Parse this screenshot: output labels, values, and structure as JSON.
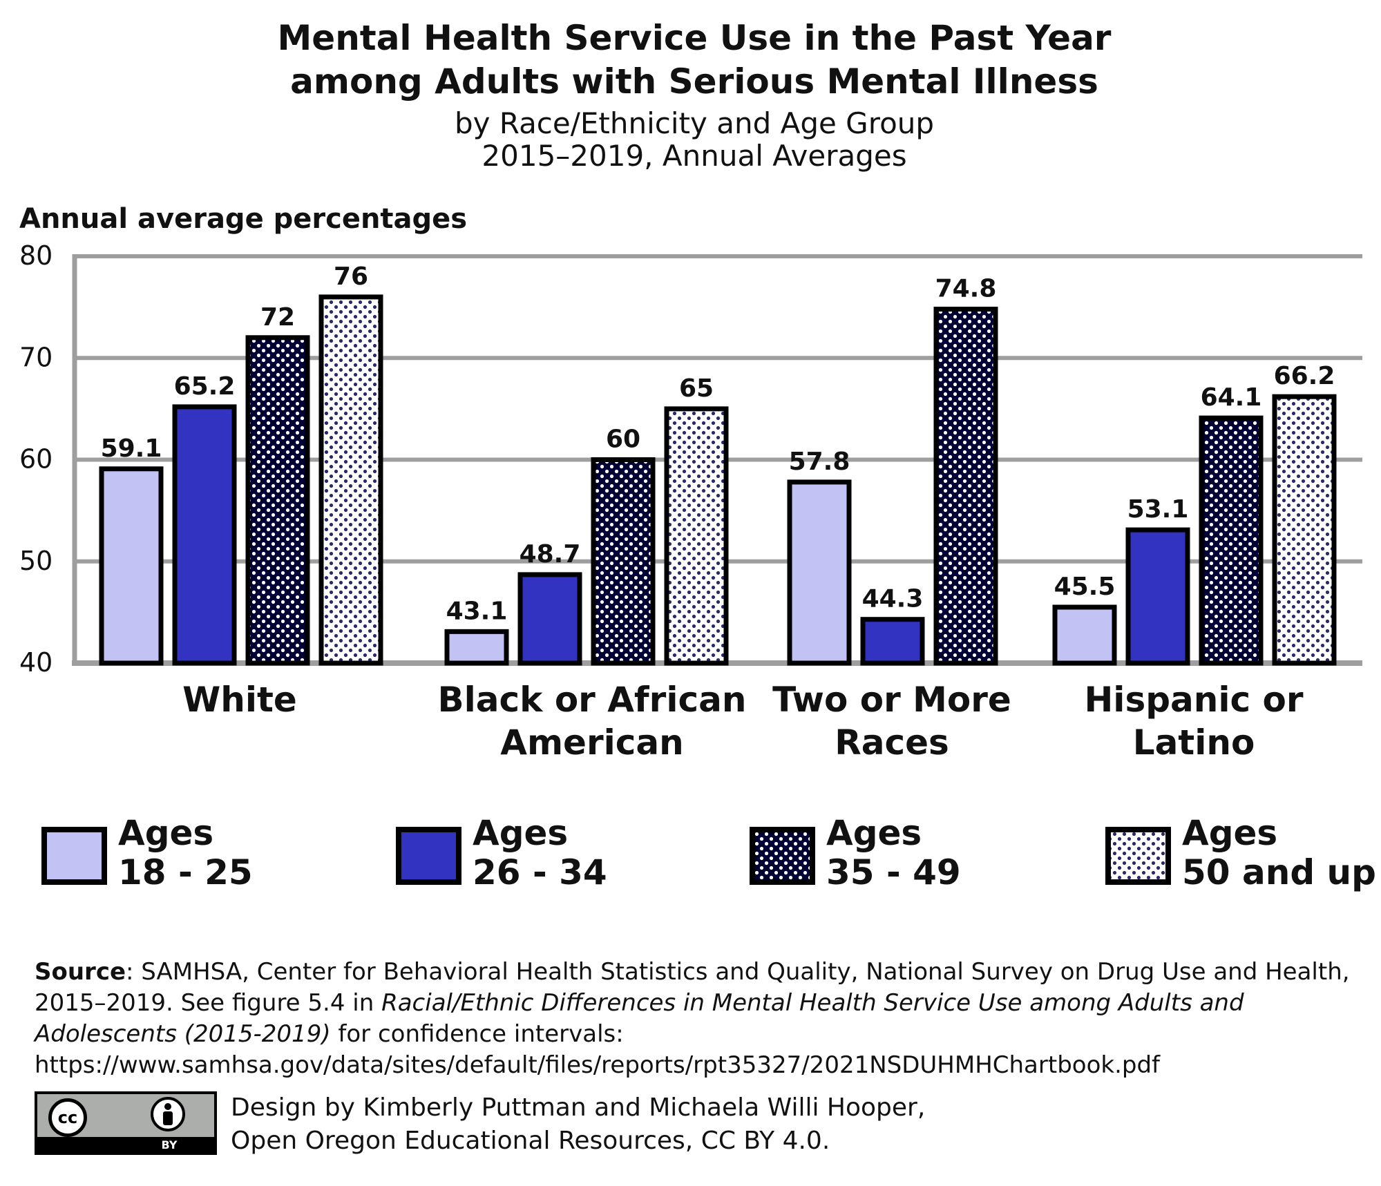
{
  "chart_data": {
    "type": "bar",
    "title": [
      "Mental Health Service Use in the Past Year",
      "among Adults with Serious Mental Illness"
    ],
    "subtitle": [
      "by Race/Ethnicity and Age Group",
      "2015–2019, Annual Averages"
    ],
    "ylabel": "Annual average percentages",
    "ylim": [
      40,
      80
    ],
    "yticks": [
      "40",
      "50",
      "60",
      "70",
      "80"
    ],
    "grid": true,
    "legend_position": "bottom",
    "categories": [
      [
        "White"
      ],
      [
        "Black or African",
        "American"
      ],
      [
        "Two or More",
        "Races"
      ],
      [
        "Hispanic or",
        "Latino"
      ]
    ],
    "series": [
      {
        "name": [
          "Ages",
          "18 - 25"
        ],
        "values": [
          59.1,
          43.1,
          57.8,
          45.5
        ],
        "labels": [
          "59.1",
          "43.1",
          "57.8",
          "45.5"
        ]
      },
      {
        "name": [
          "Ages",
          "26 - 34"
        ],
        "values": [
          65.2,
          48.7,
          44.3,
          53.1
        ],
        "labels": [
          "65.2",
          "48.7",
          "44.3",
          "53.1"
        ]
      },
      {
        "name": [
          "Ages",
          "35 - 49"
        ],
        "values": [
          72,
          60,
          74.8,
          64.1
        ],
        "labels": [
          "72",
          "60",
          "74.8",
          "64.1"
        ]
      },
      {
        "name": [
          "Ages",
          "50 and up"
        ],
        "values": [
          76,
          65,
          null,
          66.2
        ],
        "labels": [
          "76",
          "65",
          "",
          "66.2"
        ]
      }
    ],
    "colors": {
      "series_fill": [
        "#c2c2f5",
        "#3333c2",
        "#000033",
        "#ffffff"
      ],
      "series_dots": [
        "",
        "",
        "#ffffff",
        "#2a2a6a"
      ],
      "grid": "#9e9e9e",
      "axis": "#9e9e9e",
      "outline": "#000000"
    }
  },
  "footer": {
    "source_label": "Source",
    "source_text_1": ": SAMHSA, Center for Behavioral Health Statistics and Quality, National Survey on Drug Use and Health, 2015–2019. See figure 5.4 in ",
    "report_title": "Racial/Ethnic Differences in  Mental Health Service Use among Adults and Adolescents  (2015-2019)",
    "source_text_2": " for confidence intervals:",
    "url": "https://www.samhsa.gov/data/sites/default/files/reports/rpt35327/2021NSDUHMHChartbook.pdf",
    "license_cc": "cc",
    "license_by": "BY",
    "credit_line_1": "Design by Kimberly Puttman and Michaela Willi Hooper,",
    "credit_line_2": "Open Oregon Educational Resources, CC BY 4.0."
  }
}
